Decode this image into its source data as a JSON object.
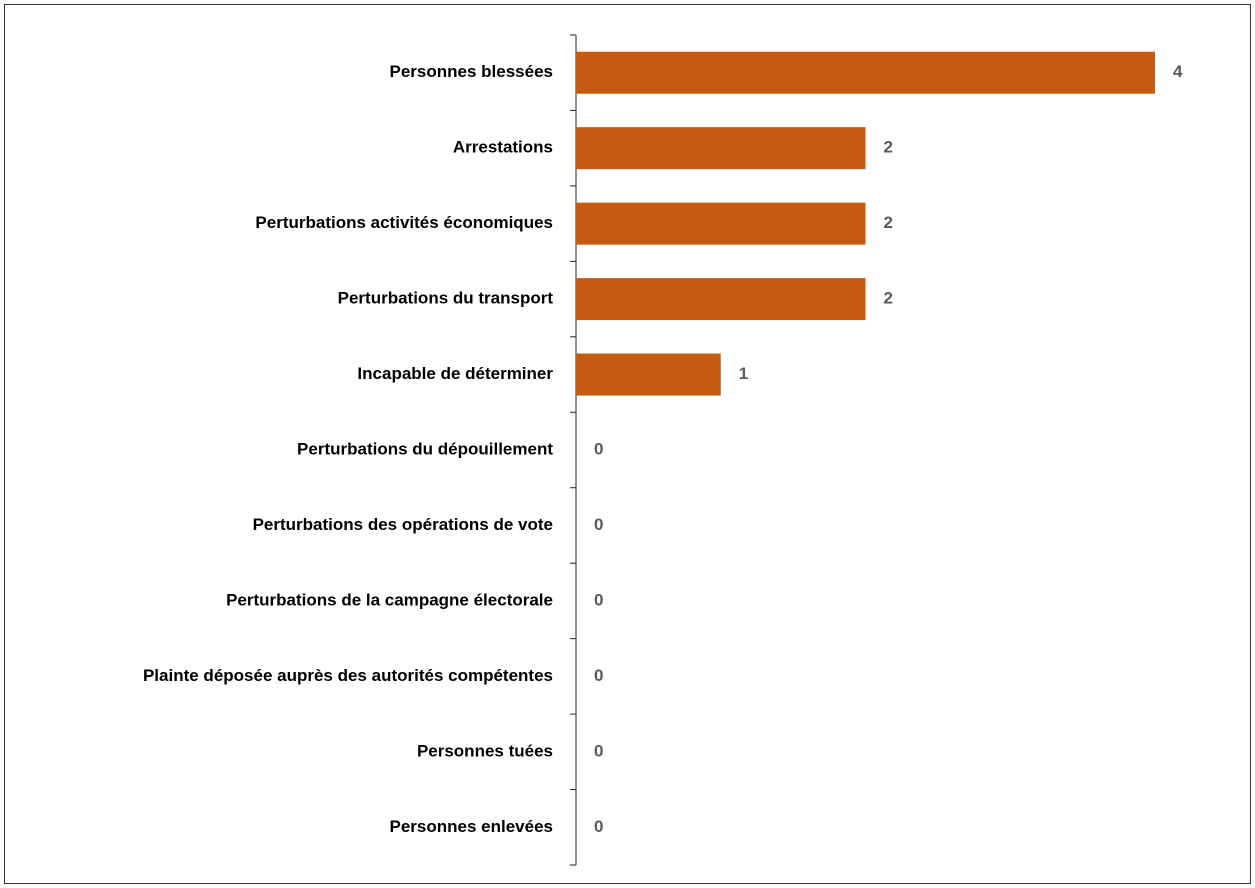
{
  "chart_data": {
    "type": "bar",
    "orientation": "horizontal",
    "categories": [
      "Personnes blessées",
      "Arrestations",
      "Perturbations activités économiques",
      "Perturbations du transport",
      "Incapable de déterminer",
      "Perturbations du dépouillement",
      "Perturbations des opérations de vote",
      "Perturbations de la campagne électorale",
      "Plainte déposée auprès des autorités compétentes",
      "Personnes tuées",
      "Personnes enlevées"
    ],
    "values": [
      4,
      2,
      2,
      2,
      1,
      0,
      0,
      0,
      0,
      0,
      0
    ],
    "color": "#c55a11",
    "value_label_color": "#595959",
    "grid": false
  }
}
